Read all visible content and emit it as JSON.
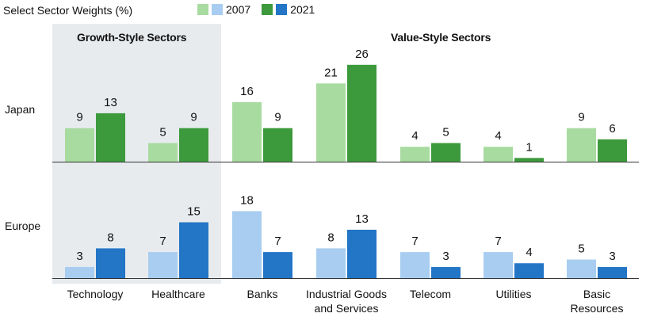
{
  "title": "Select Sector Weights (%)",
  "legend": {
    "y2007": "2007",
    "y2021": "2021"
  },
  "groups": {
    "growth": "Growth-Style Sectors",
    "value": "Value-Style Sectors"
  },
  "colors": {
    "japan_2007": "#a8dba0",
    "japan_2021": "#3c9a3c",
    "europe_2007": "#a8cdf0",
    "europe_2021": "#2375c6",
    "growth_bg": "#e8ebee",
    "axis": "#333333"
  },
  "chart_data": {
    "type": "bar",
    "title": "Select Sector Weights (%)",
    "categories": [
      "Technology",
      "Healthcare",
      "Banks",
      "Industrial Goods and Services",
      "Telecom",
      "Utilities",
      "Basic Resources"
    ],
    "category_lines": [
      [
        "Technology"
      ],
      [
        "Healthcare"
      ],
      [
        "Banks"
      ],
      [
        "Industrial Goods",
        "and Services"
      ],
      [
        "Telecom"
      ],
      [
        "Utilities"
      ],
      [
        "Basic",
        "Resources"
      ]
    ],
    "panels": [
      {
        "name": "Japan",
        "series": [
          {
            "name": "2007",
            "values": [
              9,
              5,
              16,
              21,
              4,
              4,
              9
            ]
          },
          {
            "name": "2021",
            "values": [
              13,
              9,
              9,
              26,
              5,
              1,
              6
            ]
          }
        ]
      },
      {
        "name": "Europe",
        "series": [
          {
            "name": "2007",
            "values": [
              3,
              7,
              18,
              8,
              7,
              7,
              5
            ]
          },
          {
            "name": "2021",
            "values": [
              8,
              15,
              7,
              13,
              3,
              4,
              3
            ]
          }
        ]
      }
    ],
    "groups": [
      {
        "name": "Growth-Style Sectors",
        "categories": [
          "Technology",
          "Healthcare"
        ]
      },
      {
        "name": "Value-Style Sectors",
        "categories": [
          "Banks",
          "Industrial Goods and Services",
          "Telecom",
          "Utilities",
          "Basic Resources"
        ]
      }
    ],
    "legend_position": "top",
    "grid": false
  }
}
